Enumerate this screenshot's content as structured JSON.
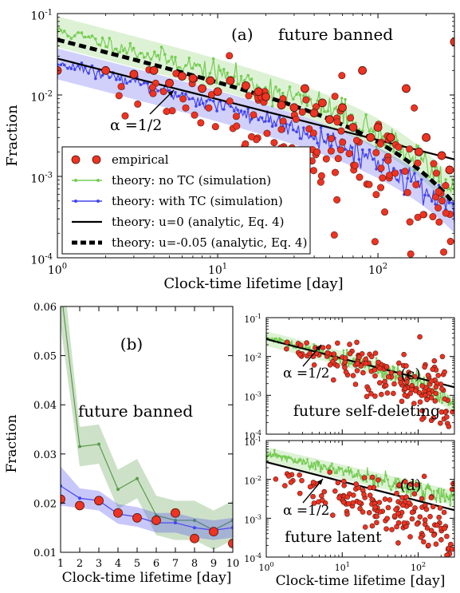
{
  "chart_data": [
    {
      "id": "a",
      "type": "scatter",
      "panel_label": "(a)",
      "annotation": "future banned",
      "alpha_label": "α =1/2",
      "xlabel": "Clock-time lifetime [day]",
      "ylabel": "Fraction",
      "xscale": "log",
      "yscale": "log",
      "xlim": [
        1,
        300
      ],
      "ylim": [
        0.0001,
        0.1
      ],
      "xticks": [
        {
          "v": 1,
          "label": "10",
          "exp": "0"
        },
        {
          "v": 10,
          "label": "10",
          "exp": "1"
        },
        {
          "v": 100,
          "label": "10",
          "exp": "2"
        }
      ],
      "yticks": [
        {
          "v": 0.0001,
          "label": "10",
          "exp": "-4"
        },
        {
          "v": 0.001,
          "label": "10",
          "exp": "-3"
        },
        {
          "v": 0.01,
          "label": "10",
          "exp": "-2"
        },
        {
          "v": 0.1,
          "label": "10",
          "exp": "-1"
        }
      ],
      "legend_position": "lower-left",
      "legend": [
        "empirical",
        "theory: no TC (simulation)",
        "theory: with TC (simulation)",
        "theory: u=0 (analytic, Eq. 4)",
        "theory: u=-0.05 (analytic, Eq. 4)"
      ],
      "series": [
        {
          "name": "theory: u=0 (analytic, Eq. 4)",
          "kind": "powerlaw",
          "amp": 0.028,
          "exp": -0.5,
          "color": "#000000",
          "style": "solid"
        },
        {
          "name": "theory: u=-0.05 (analytic, Eq. 4)",
          "kind": "powerlaw_decay",
          "amp": 0.048,
          "exp": -0.5,
          "decay": 0.006,
          "color": "#000000",
          "style": "dashed"
        },
        {
          "name": "theory: no TC (simulation)",
          "kind": "sim",
          "amp": 0.062,
          "exp": -0.5,
          "decay": 0.006,
          "noise": 0.08,
          "color": "#77cc55"
        },
        {
          "name": "theory: with TC (simulation)",
          "kind": "sim",
          "amp": 0.025,
          "exp": -0.5,
          "decay": 0.005,
          "noise": 0.06,
          "start": 1,
          "color": "#4444ee"
        },
        {
          "name": "empirical",
          "kind": "points",
          "x": [
            1,
            2,
            3,
            4,
            5,
            6,
            7,
            8,
            9,
            10,
            12,
            15,
            18,
            20,
            25,
            30,
            35,
            40,
            45,
            50,
            60,
            70,
            80,
            90,
            100,
            120,
            150,
            180,
            200,
            250,
            280,
            300
          ],
          "y": [
            0.02,
            0.02,
            0.018,
            0.02,
            0.014,
            0.017,
            0.016,
            0.012,
            0.015,
            0.011,
            0.015,
            0.013,
            0.011,
            0.0095,
            0.0075,
            0.007,
            0.012,
            0.006,
            0.008,
            0.005,
            0.007,
            0.004,
            0.02,
            0.003,
            0.004,
            0.003,
            0.012,
            0.002,
            0.003,
            0.0018,
            0.0012,
            0.045
          ],
          "cloud": true,
          "color": "#ee3322"
        }
      ]
    },
    {
      "id": "b",
      "type": "line",
      "panel_label": "(b)",
      "annotation": "future banned",
      "xlabel": "Clock-time lifetime [day]",
      "ylabel": "Fraction",
      "xlim": [
        1,
        10
      ],
      "ylim": [
        0.01,
        0.06
      ],
      "xticks": [
        1,
        2,
        3,
        4,
        5,
        6,
        7,
        8,
        9,
        10
      ],
      "yticks": [
        "0.01",
        "0.02",
        "0.03",
        "0.04",
        "0.05",
        "0.06"
      ],
      "series": [
        {
          "name": "theory: no TC (simulation)",
          "x": [
            1,
            2,
            3,
            4,
            5,
            6,
            7,
            8,
            9,
            10
          ],
          "y": [
            0.064,
            0.0315,
            0.032,
            0.0228,
            0.025,
            0.0175,
            0.0165,
            0.0165,
            0.0145,
            0.0165
          ],
          "band": 0.004,
          "color": "#5a9a4a"
        },
        {
          "name": "theory: with TC (simulation)",
          "x": [
            1,
            2,
            3,
            4,
            5,
            6,
            7,
            8,
            9,
            10
          ],
          "y": [
            0.0235,
            0.021,
            0.0205,
            0.0178,
            0.0172,
            0.016,
            0.016,
            0.015,
            0.0145,
            0.015
          ],
          "band": 0.002,
          "color": "#4444ee"
        },
        {
          "name": "empirical",
          "x": [
            1,
            2,
            3,
            4,
            5,
            6,
            7,
            8,
            9,
            10
          ],
          "y": [
            0.0208,
            0.0195,
            0.0205,
            0.018,
            0.017,
            0.0165,
            0.018,
            0.0128,
            0.0142,
            0.0118
          ],
          "color": "#ee3322"
        }
      ]
    },
    {
      "id": "c",
      "type": "scatter",
      "panel_label": "(c)",
      "annotation": "future self-deleting",
      "alpha_label": "α =1/2",
      "xlabel": "",
      "xscale": "log",
      "yscale": "log",
      "xlim": [
        1,
        300
      ],
      "ylim": [
        0.0001,
        0.1
      ],
      "yticks": [
        {
          "v": 0.0001,
          "label": "10",
          "exp": "-4"
        },
        {
          "v": 0.001,
          "label": "10",
          "exp": "-3"
        },
        {
          "v": 0.01,
          "label": "10",
          "exp": "-2"
        },
        {
          "v": 0.1,
          "label": "10",
          "exp": "-1"
        }
      ],
      "series": [
        {
          "name": "theory: no TC (simulation)",
          "kind": "sim",
          "amp": 0.03,
          "exp": -0.5,
          "decay": 0.004,
          "noise": 0.1,
          "color": "#77cc55"
        },
        {
          "name": "theory: u=0 (analytic, Eq. 4)",
          "kind": "powerlaw",
          "amp": 0.028,
          "exp": -0.5,
          "color": "#000000",
          "style": "solid"
        },
        {
          "name": "empirical",
          "kind": "cloud",
          "amp": 0.026,
          "exp": -0.5,
          "decay": 0.004,
          "color": "#ee3322"
        }
      ]
    },
    {
      "id": "d",
      "type": "scatter",
      "panel_label": "(d)",
      "annotation": "future latent",
      "alpha_label": "α =1/2",
      "xlabel": "Clock-time lifetime [day]",
      "xscale": "log",
      "yscale": "log",
      "xlim": [
        1,
        300
      ],
      "ylim": [
        0.0001,
        0.1
      ],
      "xticks": [
        {
          "v": 1,
          "label": "10",
          "exp": "0"
        },
        {
          "v": 10,
          "label": "10",
          "exp": "1"
        },
        {
          "v": 100,
          "label": "10",
          "exp": "2"
        }
      ],
      "yticks": [
        {
          "v": 0.0001,
          "label": "10",
          "exp": "-4"
        },
        {
          "v": 0.001,
          "label": "10",
          "exp": "-3"
        },
        {
          "v": 0.01,
          "label": "10",
          "exp": "-2"
        },
        {
          "v": 0.1,
          "label": "10",
          "exp": "-1"
        }
      ],
      "series": [
        {
          "name": "theory: no TC (simulation)",
          "kind": "sim",
          "amp": 0.045,
          "exp": -0.45,
          "decay": 0.0,
          "noise": 0.1,
          "color": "#77cc55"
        },
        {
          "name": "theory: u=0 (analytic, Eq. 4)",
          "kind": "powerlaw",
          "amp": 0.028,
          "exp": -0.5,
          "color": "#000000",
          "style": "solid"
        },
        {
          "name": "empirical",
          "kind": "cloud",
          "amp": 0.012,
          "exp": -0.5,
          "decay": 0.003,
          "color": "#ee3322"
        }
      ]
    }
  ]
}
